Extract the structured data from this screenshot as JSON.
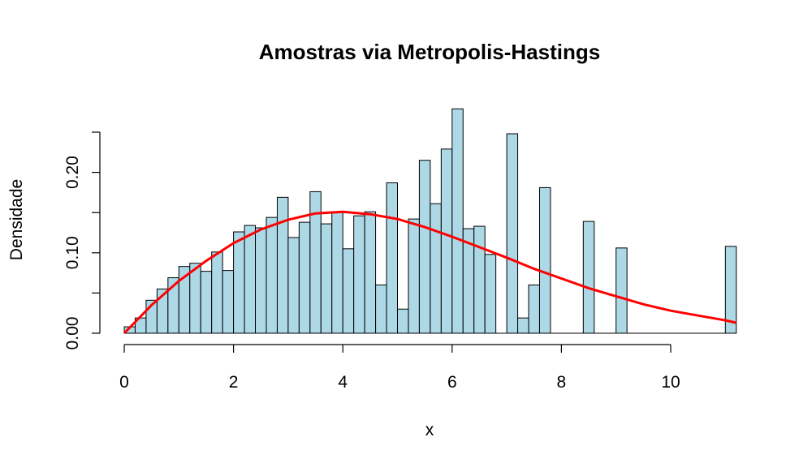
{
  "chart_data": {
    "type": "bar",
    "title": "Amostras via Metropolis-Hastings",
    "xlabel": "x",
    "ylabel": "Densidade",
    "xlim": [
      0,
      11.2
    ],
    "ylim": [
      0,
      0.28
    ],
    "xticks": [
      "0",
      "2",
      "4",
      "6",
      "8",
      "10"
    ],
    "xtick_values": [
      0,
      2,
      4,
      6,
      8,
      10
    ],
    "yticks": [
      "0.00",
      "0.10",
      "0.20"
    ],
    "ytick_values": [
      0,
      0.05,
      0.1,
      0.15,
      0.2,
      0.25
    ],
    "ytick_labeled": [
      true,
      false,
      true,
      false,
      true,
      false
    ],
    "bin_width": 0.2,
    "bin_start": 0,
    "bar_fill": "#add8e6",
    "bar_values": [
      0.008,
      0.019,
      0.041,
      0.055,
      0.069,
      0.083,
      0.087,
      0.077,
      0.101,
      0.078,
      0.126,
      0.134,
      0.131,
      0.144,
      0.169,
      0.119,
      0.138,
      0.176,
      0.136,
      0.151,
      0.105,
      0.146,
      0.151,
      0.06,
      0.187,
      0.03,
      0.142,
      0.215,
      0.161,
      0.229,
      0.279,
      0.13,
      0.133,
      0.098,
      0,
      0.248,
      0.019,
      0.06,
      0.181,
      0,
      0,
      0,
      0.139,
      0,
      0,
      0.106,
      0,
      0,
      0,
      0,
      0,
      0,
      0,
      0,
      0,
      0.108
    ],
    "density_curve": {
      "color": "#ff0000",
      "x": [
        0,
        0.5,
        1,
        1.5,
        2,
        2.5,
        3,
        3.5,
        4,
        4.5,
        5,
        5.5,
        6,
        6.5,
        7,
        7.5,
        8,
        8.5,
        9,
        9.5,
        10,
        10.5,
        11,
        11.2
      ],
      "y": [
        0,
        0.035,
        0.065,
        0.09,
        0.112,
        0.129,
        0.141,
        0.149,
        0.151,
        0.148,
        0.142,
        0.132,
        0.12,
        0.107,
        0.094,
        0.08,
        0.068,
        0.056,
        0.046,
        0.036,
        0.028,
        0.022,
        0.016,
        0.013
      ]
    }
  }
}
